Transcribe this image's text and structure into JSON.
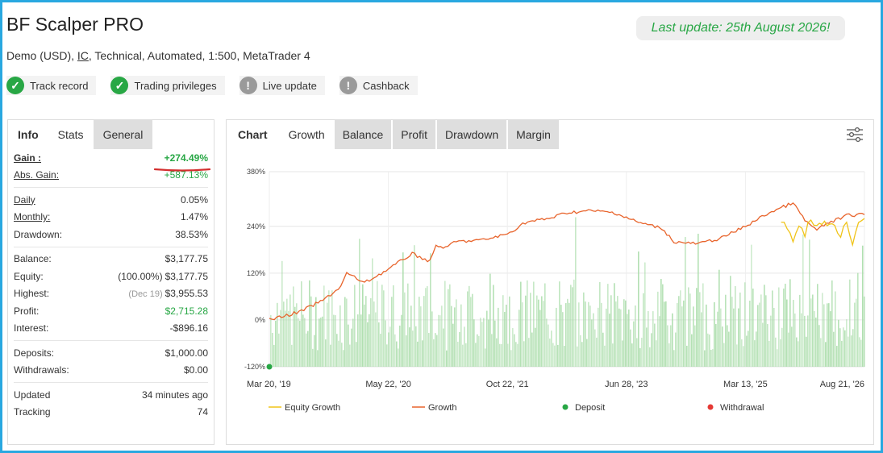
{
  "header": {
    "title": "BF Scalper PRO",
    "account_type": "Demo (USD),",
    "broker": "IC",
    "details": ", Technical, Automated, 1:500, MetaTrader 4",
    "last_update": "Last update: 25th August 2026!"
  },
  "badges": [
    {
      "label": "Track record",
      "icon": "check-icon",
      "status": "ok"
    },
    {
      "label": "Trading privileges",
      "icon": "check-icon",
      "status": "ok"
    },
    {
      "label": "Live update",
      "icon": "exclamation-icon",
      "status": "warn"
    },
    {
      "label": "Cashback",
      "icon": "exclamation-icon",
      "status": "warn"
    }
  ],
  "left_tabs": [
    "Info",
    "Stats",
    "General"
  ],
  "stats": {
    "gain": {
      "label": "Gain :",
      "value": "+274.49%"
    },
    "abs_gain": {
      "label": "Abs. Gain:",
      "value": "+587.13%"
    },
    "daily": {
      "label": "Daily",
      "value": "0.05%"
    },
    "monthly": {
      "label": "Monthly:",
      "value": "1.47%"
    },
    "drawdown": {
      "label": "Drawdown:",
      "value": "38.53%"
    },
    "balance": {
      "label": "Balance:",
      "value": "$3,177.75"
    },
    "equity": {
      "label": "Equity:",
      "note": "(100.00%)",
      "value": "$3,177.75"
    },
    "highest": {
      "label": "Highest:",
      "note": "(Dec 19)",
      "value": "$3,955.53"
    },
    "profit": {
      "label": "Profit:",
      "value": "$2,715.28"
    },
    "interest": {
      "label": "Interest:",
      "value": "-$896.16"
    },
    "deposits": {
      "label": "Deposits:",
      "value": "$1,000.00"
    },
    "withdrawals": {
      "label": "Withdrawals:",
      "value": "$0.00"
    },
    "updated": {
      "label": "Updated",
      "value": "34 minutes ago"
    },
    "tracking": {
      "label": "Tracking",
      "value": "74"
    }
  },
  "right_tabs": [
    "Chart",
    "Growth",
    "Balance",
    "Profit",
    "Drawdown",
    "Margin"
  ],
  "active_right_tab": "Growth",
  "colors": {
    "accent_green": "#28a745",
    "growth_line": "#e8642c",
    "equity_line": "#f0c419",
    "bars": "#a8dca8",
    "frame": "#29a8e0",
    "deposit_dot": "#28a745",
    "withdrawal_dot": "#e53935"
  },
  "chart_data": {
    "type": "line",
    "y_ticks": [
      "380%",
      "240%",
      "120%",
      "0%",
      "-120%"
    ],
    "y_tick_values": [
      380,
      240,
      120,
      0,
      -120
    ],
    "ylim": [
      -120,
      380
    ],
    "x_ticks": [
      "Mar 20, '19",
      "May 22, '20",
      "Oct 22, '21",
      "Jun 28, '23",
      "Mar 13, '25",
      "Aug 21, '26"
    ],
    "legend": [
      "Equity Growth",
      "Growth",
      "Deposit",
      "Withdrawal"
    ],
    "legend_position": "bottom",
    "series": [
      {
        "name": "Growth",
        "x_index": [
          0,
          0.05,
          0.09,
          0.12,
          0.13,
          0.16,
          0.2,
          0.24,
          0.27,
          0.28,
          0.3,
          0.31,
          0.36,
          0.4,
          0.43,
          0.47,
          0.5,
          0.54,
          0.58,
          0.62,
          0.66,
          0.68,
          0.72,
          0.76,
          0.8,
          0.84,
          0.88,
          0.9,
          0.92,
          0.94,
          0.96,
          0.97,
          1.0
        ],
        "values": [
          0,
          20,
          50,
          85,
          120,
          95,
          130,
          170,
          150,
          190,
          185,
          200,
          205,
          220,
          250,
          260,
          275,
          280,
          275,
          250,
          235,
          200,
          195,
          210,
          240,
          275,
          300,
          255,
          230,
          250,
          260,
          268,
          270
        ]
      },
      {
        "name": "Equity Growth",
        "x_index": [
          0.86,
          0.87,
          0.88,
          0.89,
          0.9,
          0.91,
          0.92,
          0.95,
          0.96,
          0.97,
          0.98,
          0.99,
          1.0
        ],
        "values": [
          260,
          240,
          200,
          250,
          220,
          265,
          240,
          250,
          210,
          255,
          200,
          250,
          260
        ]
      }
    ],
    "deposit_at": {
      "x_index": 0,
      "value": -120
    }
  }
}
